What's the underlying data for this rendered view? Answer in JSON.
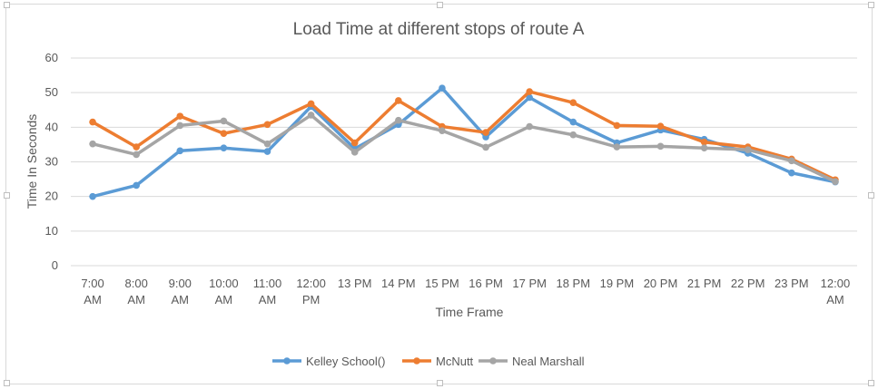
{
  "chart_data": {
    "type": "line",
    "title": "Load Time at different stops of route A",
    "xlabel": "Time Frame",
    "ylabel": "Time In Seconds",
    "ylim": [
      0,
      60
    ],
    "yticks": [
      0,
      10,
      20,
      30,
      40,
      50,
      60
    ],
    "grid": true,
    "legend_position": "bottom",
    "categories": [
      [
        "7:00",
        "AM"
      ],
      [
        "8:00",
        "AM"
      ],
      [
        "9:00",
        "AM"
      ],
      [
        "10:00",
        "AM"
      ],
      [
        "11:00",
        "AM"
      ],
      [
        "12:00",
        "PM"
      ],
      [
        "13 PM"
      ],
      [
        "14 PM"
      ],
      [
        "15 PM"
      ],
      [
        "16 PM"
      ],
      [
        "17 PM"
      ],
      [
        "18 PM"
      ],
      [
        "19 PM"
      ],
      [
        "20 PM"
      ],
      [
        "21 PM"
      ],
      [
        "22 PM"
      ],
      [
        "23 PM"
      ],
      [
        "12:00",
        "AM"
      ]
    ],
    "series": [
      {
        "name": "Kelley School()",
        "color": "#5b9bd5",
        "values": [
          20,
          23.2,
          33.2,
          34,
          33,
          46,
          33.8,
          40.8,
          51.3,
          37.2,
          48.6,
          41.5,
          35.5,
          39.2,
          36.5,
          32.5,
          26.8,
          24.2
        ]
      },
      {
        "name": "McNutt",
        "color": "#ed7d31",
        "values": [
          41.5,
          34.3,
          43.2,
          38.2,
          40.8,
          46.8,
          35.5,
          47.7,
          40.2,
          38.5,
          50.3,
          47.1,
          40.5,
          40.3,
          35.7,
          34.3,
          30.8,
          24.8
        ]
      },
      {
        "name": "Neal Marshall",
        "color": "#a5a5a5",
        "values": [
          35.2,
          32.1,
          40.5,
          41.8,
          35.2,
          43.5,
          32.8,
          42,
          39,
          34.2,
          40.2,
          37.8,
          34.3,
          34.5,
          34,
          33.5,
          30.3,
          24.3
        ]
      }
    ]
  }
}
